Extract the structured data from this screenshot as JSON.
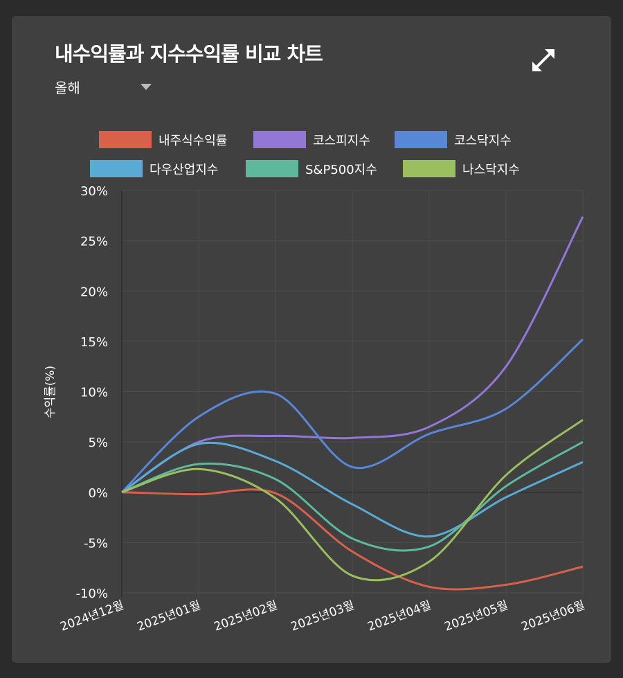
{
  "header": {
    "title": "내수익률과 지수수익률 비교 차트",
    "period_select": "올해",
    "expand_icon": "expand-arrows-icon"
  },
  "chart_data": {
    "type": "line",
    "title": "",
    "xlabel": "",
    "ylabel": "수익률(%)",
    "categories": [
      "2024년12월",
      "2025년01월",
      "2025년02월",
      "2025년03월",
      "2025년04월",
      "2025년05월",
      "2025년06월"
    ],
    "ylim": [
      -10,
      30
    ],
    "yticks": [
      30,
      25,
      20,
      15,
      10,
      5,
      0,
      -5,
      -10
    ],
    "ytick_labels": [
      "30%",
      "25%",
      "20%",
      "15%",
      "10%",
      "5%",
      "0%",
      "-5%",
      "-10%"
    ],
    "grid": true,
    "legend": "top",
    "series": [
      {
        "name": "내주식수익률",
        "color": "#d9604a",
        "values": [
          0,
          -0.2,
          -0.1,
          -5.9,
          -9.4,
          -9.2,
          -7.4
        ]
      },
      {
        "name": "코스피지수",
        "color": "#9277d6",
        "values": [
          0,
          5.0,
          5.6,
          5.4,
          6.5,
          12.5,
          27.4
        ]
      },
      {
        "name": "코스닥지수",
        "color": "#5887d8",
        "values": [
          0,
          7.5,
          9.8,
          2.5,
          5.8,
          8.3,
          15.2
        ]
      },
      {
        "name": "다우산업지수",
        "color": "#5aaad6",
        "values": [
          0,
          4.8,
          3.1,
          -1.2,
          -4.4,
          -0.5,
          3.0
        ]
      },
      {
        "name": "S&P500지수",
        "color": "#5db89c",
        "values": [
          0,
          2.8,
          1.3,
          -4.6,
          -5.4,
          0.6,
          5.0
        ]
      },
      {
        "name": "나스닥지수",
        "color": "#9bbf5f",
        "values": [
          0,
          2.3,
          -0.6,
          -8.3,
          -6.9,
          1.7,
          7.2
        ]
      }
    ]
  }
}
